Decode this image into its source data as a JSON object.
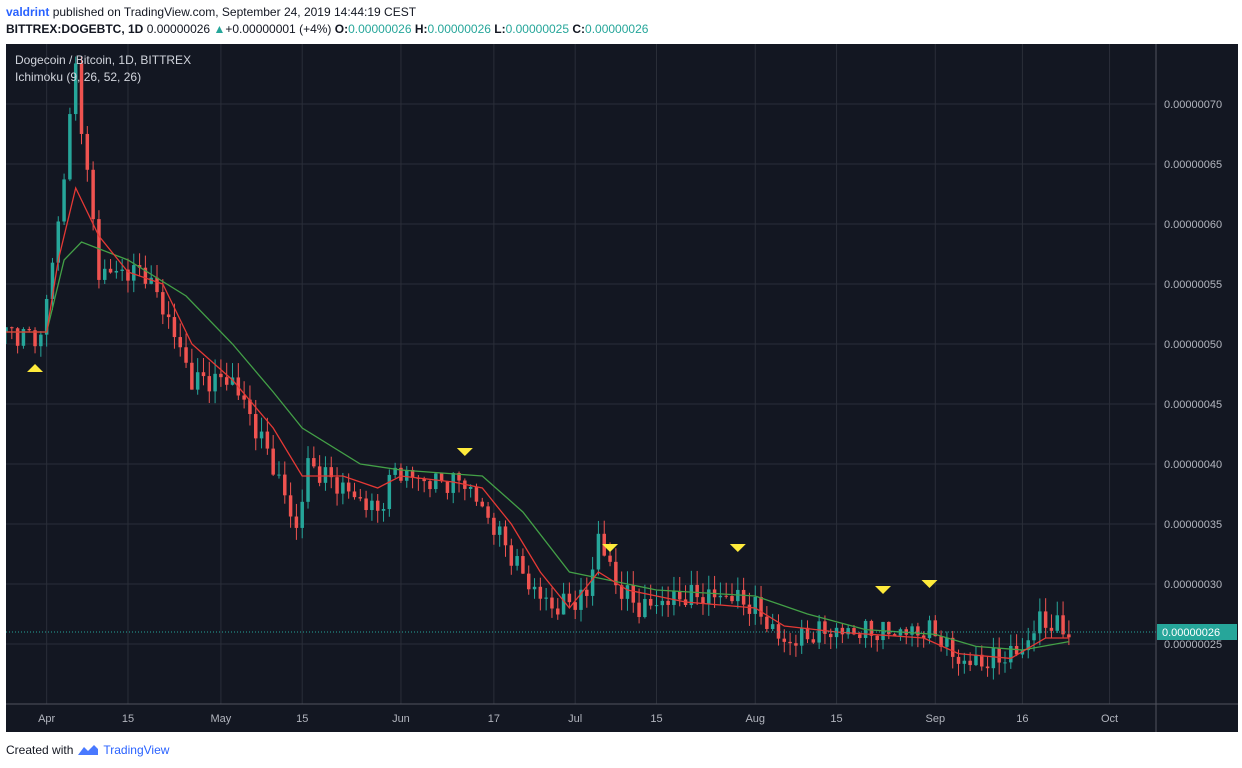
{
  "header": {
    "author": "valdrint",
    "published_text": "published on TradingView.com, September 24, 2019 14:44:19 CEST"
  },
  "ohlc_bar": {
    "symbol": "BITTREX:DOGEBTC, 1D",
    "last": "0.00000026",
    "change_arrow": "▲",
    "change": "+0.00000001 (+4%)",
    "o_label": "O:",
    "o": "0.00000026",
    "h_label": "H:",
    "h": "0.00000026",
    "l_label": "L:",
    "l": "0.00000025",
    "c_label": "C:",
    "c": "0.00000026"
  },
  "footer": {
    "created_with": "Created with",
    "brand": "TradingView"
  },
  "colors": {
    "background": "#131722",
    "grid": "#2a2e39",
    "up": "#26a69a",
    "down": "#ef5350",
    "tenkan": "#e53935",
    "kijun": "#43a047",
    "marker": "#ffeb3b",
    "price_line": "#26a69a"
  },
  "chart_data": {
    "type": "candlestick",
    "title": "Dogecoin / Bitcoin, 1D, BITTREX",
    "indicator": "Ichimoku (9, 26, 52, 26)",
    "x_tick_labels": [
      "Apr",
      "15",
      "May",
      "15",
      "Jun",
      "17",
      "Jul",
      "15",
      "Aug",
      "15",
      "Sep",
      "16",
      "Oct"
    ],
    "x_tick_dates": [
      "2019-04-01",
      "2019-04-15",
      "2019-05-01",
      "2019-05-15",
      "2019-06-01",
      "2019-06-17",
      "2019-07-01",
      "2019-07-15",
      "2019-08-01",
      "2019-08-15",
      "2019-09-01",
      "2019-09-16",
      "2019-10-01"
    ],
    "x_range": [
      "2019-03-25",
      "2019-10-09"
    ],
    "y_tick_labels": [
      "0.00000070",
      "0.00000065",
      "0.00000060",
      "0.00000055",
      "0.00000050",
      "0.00000045",
      "0.00000040",
      "0.00000035",
      "0.00000030",
      "0.00000025"
    ],
    "y_range": [
      2e-07,
      7.5e-07
    ],
    "last_price_label": "0.00000026",
    "last_price": 2.6e-07,
    "key_points": [
      {
        "date": "2019-03-25",
        "close": 5.1e-07
      },
      {
        "date": "2019-03-31",
        "close": 5.05e-07
      },
      {
        "date": "2019-04-03",
        "close": 6e-07
      },
      {
        "date": "2019-04-06",
        "close": 7.3e-07
      },
      {
        "date": "2019-04-08",
        "close": 6.4e-07
      },
      {
        "date": "2019-04-10",
        "close": 5.6e-07
      },
      {
        "date": "2019-04-18",
        "close": 5.6e-07
      },
      {
        "date": "2019-04-22",
        "close": 5.2e-07
      },
      {
        "date": "2019-04-26",
        "close": 4.7e-07
      },
      {
        "date": "2019-05-03",
        "close": 4.7e-07
      },
      {
        "date": "2019-05-10",
        "close": 4e-07
      },
      {
        "date": "2019-05-14",
        "close": 3.45e-07
      },
      {
        "date": "2019-05-16",
        "close": 4e-07
      },
      {
        "date": "2019-05-22",
        "close": 3.8e-07
      },
      {
        "date": "2019-05-28",
        "close": 3.6e-07
      },
      {
        "date": "2019-05-31",
        "close": 3.95e-07
      },
      {
        "date": "2019-06-05",
        "close": 3.85e-07
      },
      {
        "date": "2019-06-12",
        "close": 3.85e-07
      },
      {
        "date": "2019-06-18",
        "close": 3.4e-07
      },
      {
        "date": "2019-06-23",
        "close": 3e-07
      },
      {
        "date": "2019-06-27",
        "close": 2.8e-07
      },
      {
        "date": "2019-07-03",
        "close": 2.9e-07
      },
      {
        "date": "2019-07-05",
        "close": 3.4e-07
      },
      {
        "date": "2019-07-08",
        "close": 3e-07
      },
      {
        "date": "2019-07-12",
        "close": 2.8e-07
      },
      {
        "date": "2019-07-20",
        "close": 2.9e-07
      },
      {
        "date": "2019-07-28",
        "close": 2.9e-07
      },
      {
        "date": "2019-08-01",
        "close": 2.8e-07
      },
      {
        "date": "2019-08-06",
        "close": 2.5e-07
      },
      {
        "date": "2019-08-12",
        "close": 2.6e-07
      },
      {
        "date": "2019-08-20",
        "close": 2.6e-07
      },
      {
        "date": "2019-08-25",
        "close": 2.6e-07
      },
      {
        "date": "2019-09-01",
        "close": 2.6e-07
      },
      {
        "date": "2019-09-05",
        "close": 2.35e-07
      },
      {
        "date": "2019-09-10",
        "close": 2.35e-07
      },
      {
        "date": "2019-09-16",
        "close": 2.45e-07
      },
      {
        "date": "2019-09-19",
        "close": 2.7e-07
      },
      {
        "date": "2019-09-24",
        "close": 2.6e-07
      }
    ],
    "tenkan_points": [
      {
        "date": "2019-03-25",
        "value": 5.1e-07
      },
      {
        "date": "2019-04-01",
        "value": 5.1e-07
      },
      {
        "date": "2019-04-03",
        "value": 5.7e-07
      },
      {
        "date": "2019-04-06",
        "value": 6.3e-07
      },
      {
        "date": "2019-04-10",
        "value": 5.9e-07
      },
      {
        "date": "2019-04-15",
        "value": 5.6e-07
      },
      {
        "date": "2019-04-21",
        "value": 5.5e-07
      },
      {
        "date": "2019-04-26",
        "value": 5e-07
      },
      {
        "date": "2019-05-03",
        "value": 4.7e-07
      },
      {
        "date": "2019-05-10",
        "value": 4.3e-07
      },
      {
        "date": "2019-05-15",
        "value": 3.9e-07
      },
      {
        "date": "2019-05-22",
        "value": 3.9e-07
      },
      {
        "date": "2019-05-28",
        "value": 3.8e-07
      },
      {
        "date": "2019-06-01",
        "value": 3.9e-07
      },
      {
        "date": "2019-06-10",
        "value": 3.85e-07
      },
      {
        "date": "2019-06-15",
        "value": 3.8e-07
      },
      {
        "date": "2019-06-20",
        "value": 3.5e-07
      },
      {
        "date": "2019-06-25",
        "value": 3.1e-07
      },
      {
        "date": "2019-06-30",
        "value": 2.8e-07
      },
      {
        "date": "2019-07-05",
        "value": 3.1e-07
      },
      {
        "date": "2019-07-10",
        "value": 2.95e-07
      },
      {
        "date": "2019-07-20",
        "value": 2.85e-07
      },
      {
        "date": "2019-08-01",
        "value": 2.8e-07
      },
      {
        "date": "2019-08-06",
        "value": 2.65e-07
      },
      {
        "date": "2019-08-15",
        "value": 2.6e-07
      },
      {
        "date": "2019-08-30",
        "value": 2.55e-07
      },
      {
        "date": "2019-09-05",
        "value": 2.42e-07
      },
      {
        "date": "2019-09-14",
        "value": 2.38e-07
      },
      {
        "date": "2019-09-20",
        "value": 2.55e-07
      },
      {
        "date": "2019-09-24",
        "value": 2.55e-07
      }
    ],
    "kijun_points": [
      {
        "date": "2019-03-25",
        "value": 5.1e-07
      },
      {
        "date": "2019-04-01",
        "value": 5.1e-07
      },
      {
        "date": "2019-04-04",
        "value": 5.7e-07
      },
      {
        "date": "2019-04-07",
        "value": 5.85e-07
      },
      {
        "date": "2019-04-15",
        "value": 5.7e-07
      },
      {
        "date": "2019-04-25",
        "value": 5.4e-07
      },
      {
        "date": "2019-05-03",
        "value": 5e-07
      },
      {
        "date": "2019-05-10",
        "value": 4.6e-07
      },
      {
        "date": "2019-05-15",
        "value": 4.3e-07
      },
      {
        "date": "2019-05-25",
        "value": 4e-07
      },
      {
        "date": "2019-06-01",
        "value": 3.95e-07
      },
      {
        "date": "2019-06-15",
        "value": 3.9e-07
      },
      {
        "date": "2019-06-22",
        "value": 3.6e-07
      },
      {
        "date": "2019-06-30",
        "value": 3.1e-07
      },
      {
        "date": "2019-07-05",
        "value": 3.05e-07
      },
      {
        "date": "2019-07-15",
        "value": 2.95e-07
      },
      {
        "date": "2019-08-01",
        "value": 2.9e-07
      },
      {
        "date": "2019-08-10",
        "value": 2.75e-07
      },
      {
        "date": "2019-08-20",
        "value": 2.62e-07
      },
      {
        "date": "2019-09-01",
        "value": 2.58e-07
      },
      {
        "date": "2019-09-08",
        "value": 2.48e-07
      },
      {
        "date": "2019-09-16",
        "value": 2.45e-07
      },
      {
        "date": "2019-09-24",
        "value": 2.52e-07
      }
    ],
    "markers": [
      {
        "date": "2019-03-30",
        "value": 4.8e-07,
        "direction": "up"
      },
      {
        "date": "2019-06-12",
        "value": 4.1e-07,
        "direction": "down"
      },
      {
        "date": "2019-07-07",
        "value": 3.3e-07,
        "direction": "down"
      },
      {
        "date": "2019-07-29",
        "value": 3.3e-07,
        "direction": "down"
      },
      {
        "date": "2019-08-23",
        "value": 2.95e-07,
        "direction": "down"
      },
      {
        "date": "2019-08-31",
        "value": 3e-07,
        "direction": "down"
      }
    ],
    "grid": true
  }
}
